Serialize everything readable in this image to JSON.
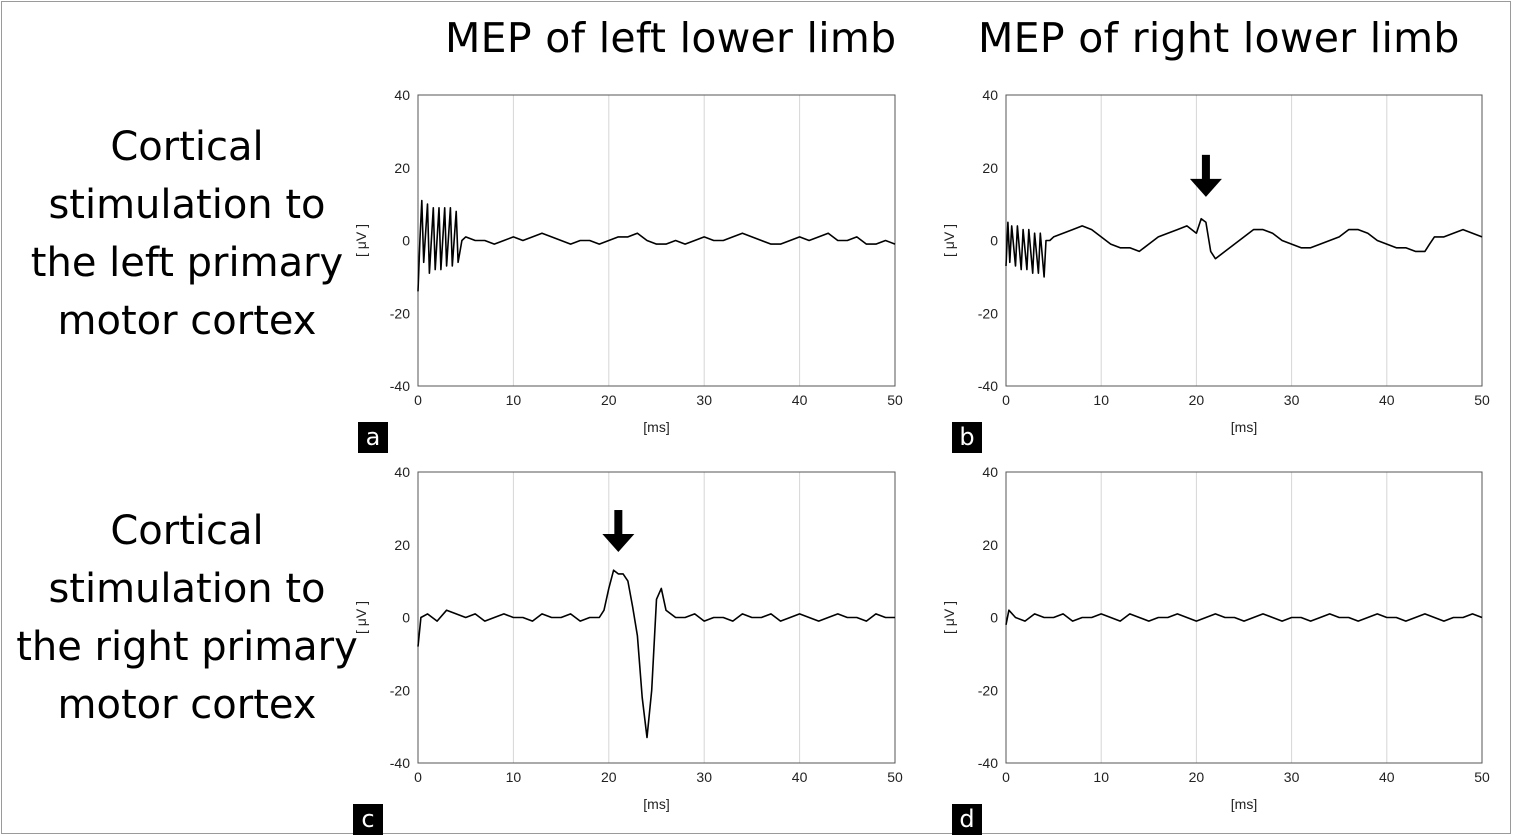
{
  "columns": [
    "MEP of left lower limb",
    "MEP of right lower limb"
  ],
  "rows": [
    [
      "Cortical",
      "stimulation to",
      "the left primary",
      "motor cortex"
    ],
    [
      "Cortical",
      "stimulation to",
      "the right primary",
      "motor cortex"
    ]
  ],
  "chart_data": [
    {
      "panel": "a",
      "type": "line",
      "xlabel": "[ms]",
      "ylabel": "[ μV ]",
      "xlim": [
        0,
        50
      ],
      "ylim": [
        -40,
        40
      ],
      "xticks": [
        0,
        10,
        20,
        30,
        40,
        50
      ],
      "yticks": [
        40,
        20,
        0,
        -20,
        -40
      ],
      "grid": "vertical",
      "series": [
        {
          "color": "#000000",
          "x": [
            0,
            0.2,
            0.4,
            0.6,
            1.0,
            1.2,
            1.6,
            1.8,
            2.2,
            2.4,
            2.8,
            3.0,
            3.4,
            3.6,
            4.0,
            4.2,
            4.6,
            5,
            6,
            7,
            8,
            9,
            10,
            11,
            12,
            13,
            14,
            15,
            16,
            17,
            18,
            19,
            20,
            21,
            22,
            23,
            24,
            25,
            26,
            27,
            28,
            29,
            30,
            31,
            32,
            33,
            34,
            35,
            36,
            37,
            38,
            39,
            40,
            41,
            42,
            43,
            44,
            45,
            46,
            47,
            48,
            49,
            50
          ],
          "y": [
            -14,
            0,
            11,
            -6,
            10,
            -9,
            9,
            -8,
            9,
            -8,
            9,
            -7,
            9,
            -7,
            8,
            -6,
            0,
            1,
            0,
            0,
            -1,
            0,
            1,
            0,
            1,
            2,
            1,
            0,
            -1,
            0,
            0,
            -1,
            0,
            1,
            1,
            2,
            0,
            -1,
            -1,
            0,
            -1,
            0,
            1,
            0,
            0,
            1,
            2,
            1,
            0,
            -1,
            -1,
            0,
            1,
            0,
            1,
            2,
            0,
            0,
            1,
            -1,
            -1,
            0,
            -1
          ]
        }
      ]
    },
    {
      "panel": "b",
      "type": "line",
      "xlabel": "[ms]",
      "ylabel": "[ μV ]",
      "xlim": [
        0,
        50
      ],
      "ylim": [
        -40,
        40
      ],
      "xticks": [
        0,
        10,
        20,
        30,
        40,
        50
      ],
      "yticks": [
        40,
        20,
        0,
        -20,
        -40
      ],
      "grid": "vertical",
      "annotations": [
        {
          "type": "arrow",
          "x": 21,
          "tip_y": 12
        }
      ],
      "series": [
        {
          "color": "#000000",
          "x": [
            0,
            0.2,
            0.4,
            0.6,
            1.0,
            1.2,
            1.6,
            1.8,
            2.2,
            2.4,
            2.8,
            3.0,
            3.4,
            3.6,
            4.0,
            4.2,
            4.6,
            5,
            6,
            7,
            8,
            9,
            10,
            11,
            12,
            13,
            14,
            15,
            16,
            17,
            18,
            19,
            20,
            20.5,
            21,
            21.5,
            22,
            23,
            24,
            25,
            26,
            27,
            28,
            29,
            30,
            31,
            32,
            33,
            34,
            35,
            36,
            37,
            38,
            39,
            40,
            41,
            42,
            43,
            44,
            44.5,
            45,
            46,
            47,
            48,
            49,
            50
          ],
          "y": [
            -7,
            5,
            -6,
            4,
            -7,
            4,
            -8,
            3,
            -8,
            3,
            -9,
            2,
            -9,
            2,
            -10,
            0,
            0,
            1,
            2,
            3,
            4,
            3,
            1,
            -1,
            -2,
            -2,
            -3,
            -1,
            1,
            2,
            3,
            4,
            2,
            6,
            5,
            -3,
            -5,
            -3,
            -1,
            1,
            3,
            3,
            2,
            0,
            -1,
            -2,
            -2,
            -1,
            0,
            1,
            3,
            3,
            2,
            0,
            -1,
            -2,
            -2,
            -3,
            -3,
            -1,
            1,
            1,
            2,
            3,
            2,
            1
          ]
        }
      ]
    },
    {
      "panel": "c",
      "type": "line",
      "xlabel": "[ms]",
      "ylabel": "[ μV ]",
      "xlim": [
        0,
        50
      ],
      "ylim": [
        -40,
        40
      ],
      "xticks": [
        0,
        10,
        20,
        30,
        40,
        50
      ],
      "yticks": [
        40,
        20,
        0,
        -20,
        -40
      ],
      "grid": "vertical",
      "annotations": [
        {
          "type": "arrow",
          "x": 21,
          "tip_y": 18
        }
      ],
      "series": [
        {
          "color": "#000000",
          "x": [
            0,
            0.3,
            1,
            2,
            3,
            4,
            5,
            6,
            7,
            8,
            9,
            10,
            11,
            12,
            13,
            14,
            15,
            16,
            17,
            18,
            19,
            19.5,
            20,
            20.5,
            21,
            21.5,
            22,
            22.5,
            23,
            23.5,
            24,
            24.5,
            25,
            25.5,
            26,
            27,
            28,
            29,
            30,
            31,
            32,
            33,
            34,
            35,
            36,
            37,
            38,
            39,
            40,
            41,
            42,
            43,
            44,
            45,
            46,
            47,
            48,
            49,
            50
          ],
          "y": [
            -8,
            0,
            1,
            -1,
            2,
            1,
            0,
            1,
            -1,
            0,
            1,
            0,
            0,
            -1,
            1,
            0,
            0,
            1,
            -1,
            0,
            0,
            2,
            8,
            13,
            12,
            12,
            10,
            3,
            -5,
            -22,
            -33,
            -20,
            5,
            8,
            2,
            0,
            0,
            1,
            -1,
            0,
            0,
            -1,
            1,
            0,
            0,
            1,
            -1,
            0,
            1,
            0,
            -1,
            0,
            1,
            0,
            0,
            -1,
            1,
            0,
            0
          ]
        }
      ]
    },
    {
      "panel": "d",
      "type": "line",
      "xlabel": "[ms]",
      "ylabel": "[ μV ]",
      "xlim": [
        0,
        50
      ],
      "ylim": [
        -40,
        40
      ],
      "xticks": [
        0,
        10,
        20,
        30,
        40,
        50
      ],
      "yticks": [
        40,
        20,
        0,
        -20,
        -40
      ],
      "grid": "vertical",
      "series": [
        {
          "color": "#000000",
          "x": [
            0,
            0.3,
            1,
            2,
            3,
            4,
            5,
            6,
            7,
            8,
            9,
            10,
            11,
            12,
            13,
            14,
            15,
            16,
            17,
            18,
            19,
            20,
            21,
            22,
            23,
            24,
            25,
            26,
            27,
            28,
            29,
            30,
            31,
            32,
            33,
            34,
            35,
            36,
            37,
            38,
            39,
            40,
            41,
            42,
            43,
            44,
            45,
            46,
            47,
            48,
            49,
            50
          ],
          "y": [
            -2,
            2,
            0,
            -1,
            1,
            0,
            0,
            1,
            -1,
            0,
            0,
            1,
            0,
            -1,
            1,
            0,
            -1,
            0,
            0,
            1,
            0,
            -1,
            0,
            1,
            0,
            0,
            -1,
            0,
            1,
            0,
            -1,
            0,
            0,
            -1,
            0,
            1,
            0,
            0,
            -1,
            0,
            1,
            0,
            0,
            -1,
            0,
            1,
            0,
            -1,
            0,
            0,
            1,
            0
          ]
        }
      ]
    }
  ]
}
